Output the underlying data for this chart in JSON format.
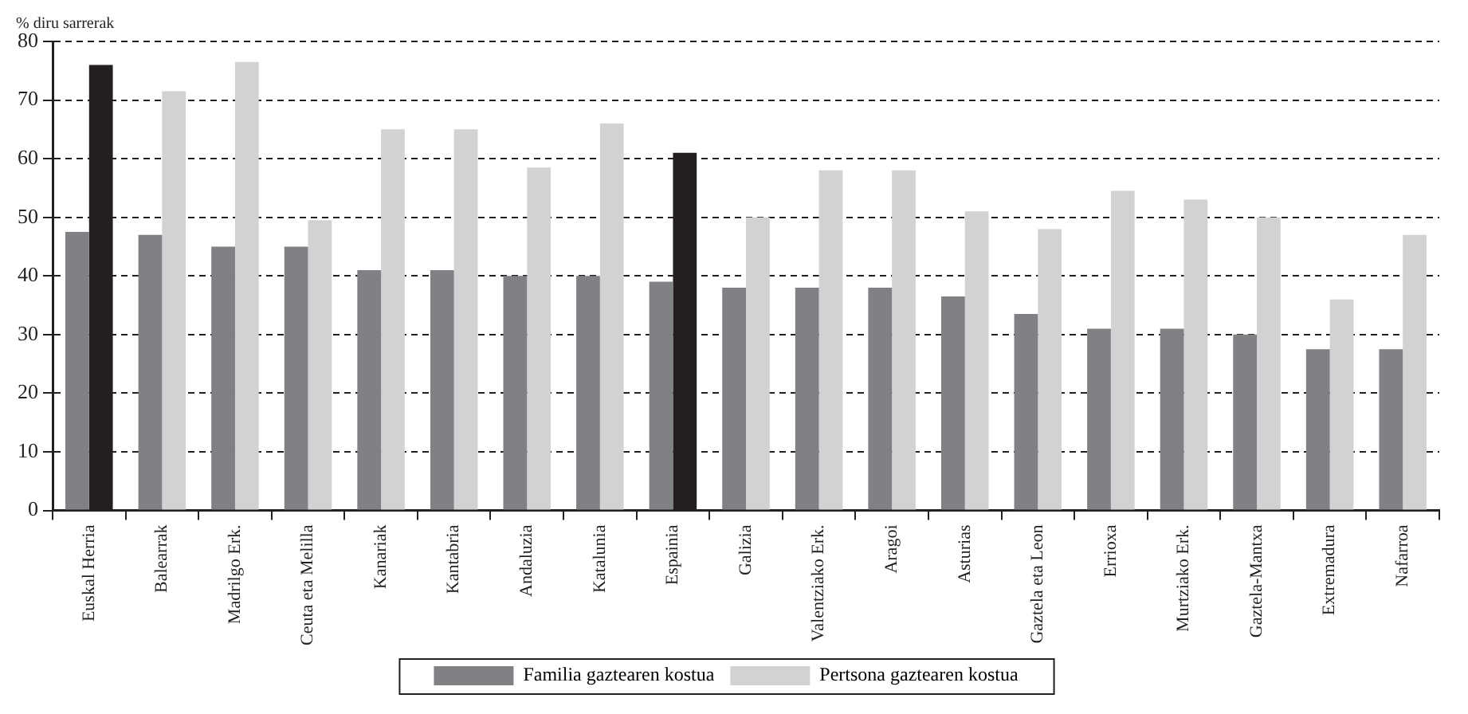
{
  "chart_data": {
    "type": "bar",
    "ylabel": "% diru sarrerak",
    "categories": [
      "Euskal Herria",
      "Balearrak",
      "Madrilgo Erk.",
      "Ceuta eta Melilla",
      "Kanariak",
      "Kantabria",
      "Andaluzia",
      "Katalunia",
      "Espainia",
      "Galizia",
      "Valentziako Erk.",
      "Aragoi",
      "Asturias",
      "Gaztela eta Leon",
      "Errioxa",
      "Murtziako Erk.",
      "Gaztela-Mantxa",
      "Extremadura",
      "Nafarroa"
    ],
    "series": [
      {
        "name": "Familia gaztearen kostua",
        "color": "#808184",
        "values": [
          47.5,
          47,
          45,
          45,
          41,
          41,
          40,
          40,
          39,
          38,
          38,
          38,
          36.5,
          33.5,
          31,
          31,
          30,
          27.5,
          27.5
        ]
      },
      {
        "name": "Pertsona gaztearen kostua",
        "color": "#d1d2d4",
        "colors": [
          "#231f20",
          "#d1d2d4",
          "#d1d2d4",
          "#d1d2d4",
          "#d1d2d4",
          "#d1d2d4",
          "#d1d2d4",
          "#d1d2d4",
          "#231f20",
          "#d1d2d4",
          "#d1d2d4",
          "#d1d2d4",
          "#d1d2d4",
          "#d1d2d4",
          "#d1d2d4",
          "#d1d2d4",
          "#d1d2d4",
          "#d1d2d4",
          "#d1d2d4"
        ],
        "values": [
          76,
          71.5,
          76.5,
          49.5,
          65,
          65,
          58.5,
          66,
          61,
          50,
          58,
          58,
          51,
          48,
          54.5,
          53,
          50,
          36,
          47
        ]
      }
    ],
    "ylim": [
      0,
      80
    ],
    "yticks": [
      0,
      10,
      20,
      30,
      40,
      50,
      60,
      70,
      80
    ],
    "grid": "y",
    "legend": "bottom"
  }
}
